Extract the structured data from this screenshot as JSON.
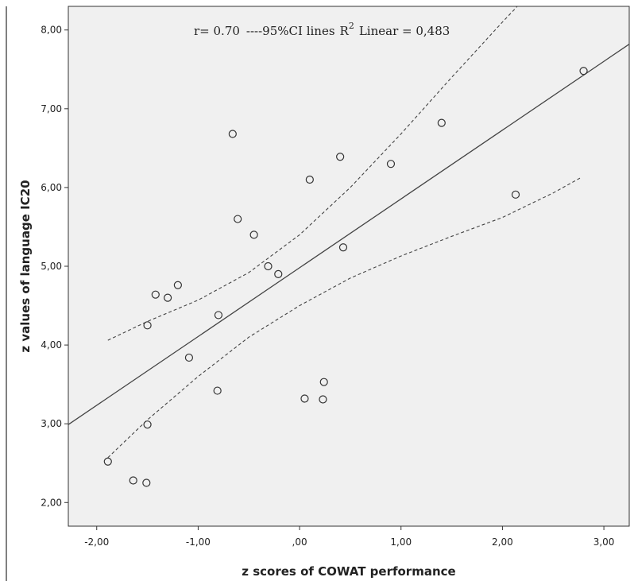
{
  "chart_data": {
    "type": "scatter",
    "xlabel": "z scores of COWAT performance",
    "ylabel": "z values of language IC20",
    "xlim": [
      -2.28,
      3.25
    ],
    "ylim": [
      1.7,
      8.3
    ],
    "x_ticks": [
      -2,
      -1,
      0,
      1,
      2,
      3
    ],
    "x_tick_labels": [
      "-2,00",
      "-1,00",
      ",00",
      "1,00",
      "2,00",
      "3,00"
    ],
    "y_ticks": [
      2,
      3,
      4,
      5,
      6,
      7,
      8
    ],
    "y_tick_labels": [
      "2,00",
      "3,00",
      "4,00",
      "5,00",
      "6,00",
      "7,00",
      "8,00"
    ],
    "annotation": {
      "r_text": "r= 0.70",
      "ci_text": "----95%CI lines",
      "r2_text": "R",
      "r2_sup": "2",
      "linear_text": "Linear = 0,483"
    },
    "points": [
      {
        "x": -1.89,
        "y": 2.52
      },
      {
        "x": -1.64,
        "y": 2.28
      },
      {
        "x": -1.51,
        "y": 2.25
      },
      {
        "x": -1.5,
        "y": 2.99
      },
      {
        "x": -1.5,
        "y": 4.25
      },
      {
        "x": -1.42,
        "y": 4.64
      },
      {
        "x": -1.3,
        "y": 4.6
      },
      {
        "x": -1.2,
        "y": 4.76
      },
      {
        "x": -1.09,
        "y": 3.84
      },
      {
        "x": -0.81,
        "y": 3.42
      },
      {
        "x": -0.8,
        "y": 4.38
      },
      {
        "x": -0.66,
        "y": 6.68
      },
      {
        "x": -0.61,
        "y": 5.6
      },
      {
        "x": -0.45,
        "y": 5.4
      },
      {
        "x": -0.31,
        "y": 5.0
      },
      {
        "x": -0.21,
        "y": 4.9
      },
      {
        "x": 0.05,
        "y": 3.32
      },
      {
        "x": 0.1,
        "y": 6.1
      },
      {
        "x": 0.23,
        "y": 3.31
      },
      {
        "x": 0.24,
        "y": 3.53
      },
      {
        "x": 0.4,
        "y": 6.39
      },
      {
        "x": 0.43,
        "y": 5.24
      },
      {
        "x": 0.9,
        "y": 6.3
      },
      {
        "x": 1.4,
        "y": 6.82
      },
      {
        "x": 2.13,
        "y": 5.91
      },
      {
        "x": 2.8,
        "y": 7.48
      }
    ],
    "fit_line": {
      "x": [
        -2.28,
        3.25
      ],
      "y": [
        2.99,
        7.82
      ]
    },
    "ci_upper": {
      "x": [
        -1.89,
        -1.5,
        -1.0,
        -0.5,
        0.0,
        0.5,
        1.0,
        1.5,
        2.0,
        2.5,
        2.5
      ],
      "y": [
        4.06,
        4.3,
        4.57,
        4.92,
        5.4,
        6.0,
        6.68,
        7.4,
        8.1,
        8.78,
        8.78
      ]
    },
    "ci_lower": {
      "x": [
        -1.89,
        -1.5,
        -1.0,
        -0.5,
        0.0,
        0.5,
        1.0,
        1.5,
        2.0,
        2.5,
        2.78
      ],
      "y": [
        2.57,
        3.05,
        3.6,
        4.1,
        4.5,
        4.85,
        5.13,
        5.38,
        5.62,
        5.93,
        6.13
      ]
    },
    "colors": {
      "plot_background": "#f0f0f0",
      "line": "#444444",
      "marker_edge": "#333333"
    }
  }
}
